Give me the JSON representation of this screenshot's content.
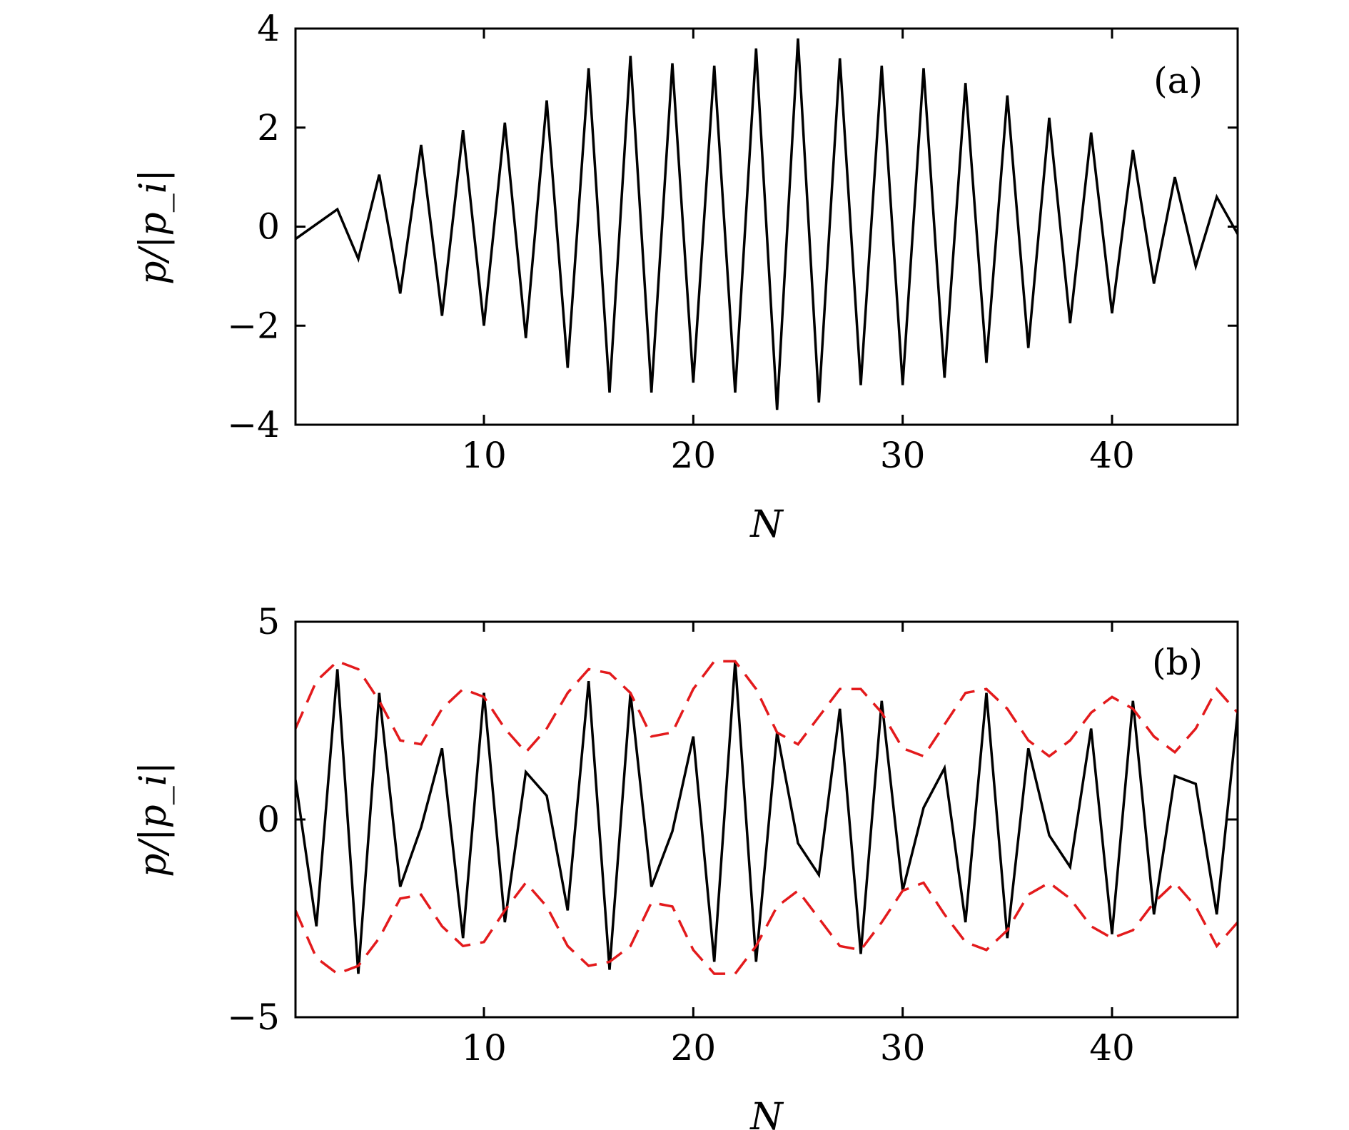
{
  "chart_data": [
    {
      "type": "line",
      "panel_label": "(a)",
      "xlabel": "N",
      "ylabel": "p/|p_i|",
      "xlim": [
        1,
        46
      ],
      "ylim": [
        -4,
        4
      ],
      "xticks": [
        10,
        20,
        30,
        40
      ],
      "yticks": [
        -4,
        -2,
        0,
        2,
        4
      ],
      "xtick_labels": [
        "10",
        "20",
        "30",
        "40"
      ],
      "ytick_labels": [
        "−4",
        "−2",
        "0",
        "2",
        "4"
      ],
      "grid": false,
      "series": [
        {
          "color": "#000000",
          "dash": "solid",
          "x": [
            1,
            3,
            4,
            5,
            6,
            7,
            8,
            9,
            10,
            11,
            12,
            13,
            14,
            15,
            16,
            17,
            18,
            19,
            20,
            21,
            22,
            23,
            24,
            25,
            26,
            27,
            28,
            29,
            30,
            31,
            32,
            33,
            34,
            35,
            36,
            37,
            38,
            39,
            40,
            41,
            42,
            43,
            44,
            45,
            46
          ],
          "y": [
            -0.25,
            0.35,
            -0.65,
            1.05,
            -1.35,
            1.65,
            -1.8,
            1.95,
            -2.0,
            2.1,
            -2.25,
            2.55,
            -2.85,
            3.2,
            -3.35,
            3.45,
            -3.35,
            3.3,
            -3.15,
            3.25,
            -3.35,
            3.6,
            -3.7,
            3.8,
            -3.55,
            3.4,
            -3.2,
            3.25,
            -3.2,
            3.2,
            -3.05,
            2.9,
            -2.75,
            2.65,
            -2.45,
            2.2,
            -1.95,
            1.9,
            -1.75,
            1.55,
            -1.15,
            1.0,
            -0.8,
            0.6,
            -0.15
          ]
        }
      ]
    },
    {
      "type": "line",
      "panel_label": "(b)",
      "xlabel": "N",
      "ylabel": "p/|p_i|",
      "xlim": [
        1,
        46
      ],
      "ylim": [
        -5,
        5
      ],
      "xticks": [
        10,
        20,
        30,
        40
      ],
      "yticks": [
        -5,
        0,
        5
      ],
      "xtick_labels": [
        "10",
        "20",
        "30",
        "40"
      ],
      "ytick_labels": [
        "−5",
        "0",
        "5"
      ],
      "grid": false,
      "series": [
        {
          "color": "#000000",
          "dash": "solid",
          "x": [
            1,
            2,
            3,
            4,
            5,
            6,
            7,
            8,
            9,
            10,
            11,
            12,
            13,
            14,
            15,
            16,
            17,
            18,
            19,
            20,
            21,
            22,
            23,
            24,
            25,
            26,
            27,
            28,
            29,
            30,
            31,
            32,
            33,
            34,
            35,
            36,
            37,
            38,
            39,
            40,
            41,
            42,
            43,
            44,
            45,
            46
          ],
          "y": [
            1.0,
            -2.7,
            3.8,
            -3.9,
            3.2,
            -1.7,
            -0.2,
            1.8,
            -3.0,
            3.2,
            -2.6,
            1.2,
            0.6,
            -2.3,
            3.5,
            -3.8,
            3.2,
            -1.7,
            -0.3,
            2.1,
            -3.6,
            4.0,
            -3.6,
            2.2,
            -0.6,
            -1.4,
            2.8,
            -3.4,
            3.0,
            -1.8,
            0.3,
            1.3,
            -2.6,
            3.2,
            -3.0,
            1.8,
            -0.4,
            -1.2,
            2.3,
            -2.9,
            3.0,
            -2.4,
            1.1,
            0.9,
            -2.4,
            2.7
          ]
        },
        {
          "color": "#e31a1c",
          "dash": "dashed",
          "x": [
            1,
            2,
            3,
            4,
            5,
            6,
            7,
            8,
            9,
            10,
            11,
            12,
            13,
            14,
            15,
            16,
            17,
            18,
            19,
            20,
            21,
            22,
            23,
            24,
            25,
            26,
            27,
            28,
            29,
            30,
            31,
            32,
            33,
            34,
            35,
            36,
            37,
            38,
            39,
            40,
            41,
            42,
            43,
            44,
            45,
            46
          ],
          "y": [
            2.3,
            3.5,
            4.0,
            3.8,
            3.0,
            2.0,
            1.9,
            2.8,
            3.3,
            3.1,
            2.3,
            1.7,
            2.3,
            3.2,
            3.8,
            3.7,
            3.2,
            2.1,
            2.2,
            3.3,
            4.0,
            4.0,
            3.3,
            2.2,
            1.9,
            2.6,
            3.3,
            3.3,
            2.7,
            1.8,
            1.6,
            2.4,
            3.2,
            3.3,
            2.8,
            2.0,
            1.6,
            2.0,
            2.7,
            3.1,
            2.8,
            2.1,
            1.7,
            2.3,
            3.3,
            2.7
          ]
        },
        {
          "color": "#e31a1c",
          "dash": "dashed",
          "x": [
            1,
            2,
            3,
            4,
            5,
            6,
            7,
            8,
            9,
            10,
            11,
            12,
            13,
            14,
            15,
            16,
            17,
            18,
            19,
            20,
            21,
            22,
            23,
            24,
            25,
            26,
            27,
            28,
            29,
            30,
            31,
            32,
            33,
            34,
            35,
            36,
            37,
            38,
            39,
            40,
            41,
            42,
            43,
            44,
            45,
            46
          ],
          "y": [
            -2.3,
            -3.5,
            -3.9,
            -3.7,
            -3.0,
            -2.0,
            -1.9,
            -2.7,
            -3.2,
            -3.1,
            -2.3,
            -1.6,
            -2.2,
            -3.2,
            -3.7,
            -3.6,
            -3.2,
            -2.1,
            -2.2,
            -3.3,
            -3.9,
            -3.9,
            -3.2,
            -2.2,
            -1.8,
            -2.5,
            -3.2,
            -3.3,
            -2.6,
            -1.8,
            -1.6,
            -2.4,
            -3.1,
            -3.3,
            -2.8,
            -1.9,
            -1.6,
            -2.0,
            -2.7,
            -3.0,
            -2.8,
            -2.1,
            -1.6,
            -2.2,
            -3.2,
            -2.6
          ]
        }
      ]
    }
  ]
}
